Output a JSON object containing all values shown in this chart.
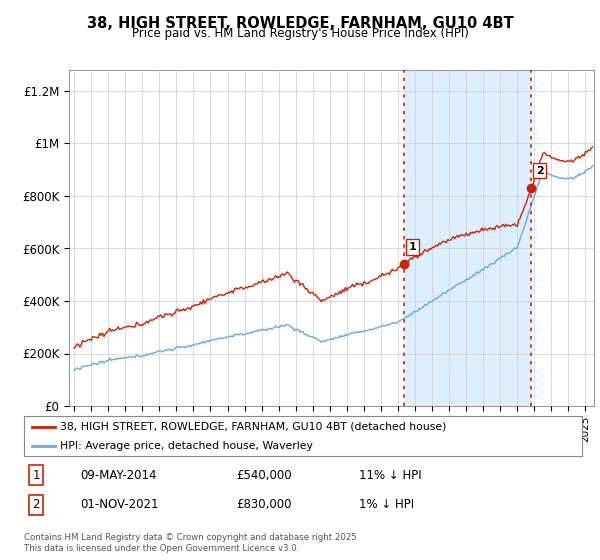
{
  "title": "38, HIGH STREET, ROWLEDGE, FARNHAM, GU10 4BT",
  "subtitle": "Price paid vs. HM Land Registry's House Price Index (HPI)",
  "plot_bg_color": "#ffffff",
  "shade_color": "#ddeeff",
  "ylabel_ticks": [
    "£0",
    "£200K",
    "£400K",
    "£600K",
    "£800K",
    "£1M",
    "£1.2M"
  ],
  "ytick_values": [
    0,
    200000,
    400000,
    600000,
    800000,
    1000000,
    1200000
  ],
  "ylim": [
    0,
    1280000
  ],
  "xlim_start": 1995.0,
  "xlim_end": 2025.5,
  "sale1_date": 2014.37,
  "sale1_price": 540000,
  "sale1_label": "1",
  "sale2_date": 2021.83,
  "sale2_price": 830000,
  "sale2_label": "2",
  "legend_line1": "38, HIGH STREET, ROWLEDGE, FARNHAM, GU10 4BT (detached house)",
  "legend_line2": "HPI: Average price, detached house, Waverley",
  "footer": "Contains HM Land Registry data © Crown copyright and database right 2025.\nThis data is licensed under the Open Government Licence v3.0.",
  "hpi_color": "#6aaad4",
  "price_color": "#cc2200",
  "vline_color": "#cc2200",
  "grid_color": "#cccccc"
}
